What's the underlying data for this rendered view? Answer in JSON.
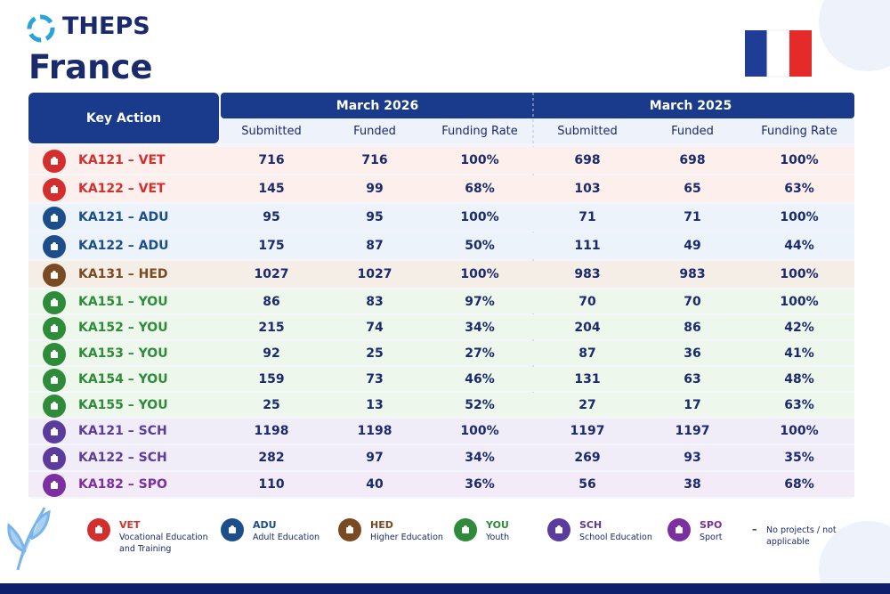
{
  "header": {
    "logo": "THEPS",
    "title": "France"
  },
  "table": {
    "key_header": "Key Action",
    "periods": [
      "March 2026",
      "March 2025"
    ],
    "subheaders": [
      "Submitted",
      "Funded",
      "Funding Rate"
    ],
    "rows": [
      [
        "KA121 – VET",
        "716",
        "716",
        "100%",
        "698",
        "698",
        "100%"
      ],
      [
        "KA122 – VET",
        "145",
        "99",
        "68%",
        "103",
        "65",
        "63%"
      ],
      [
        "KA121 – ADU",
        "95",
        "95",
        "100%",
        "71",
        "71",
        "100%"
      ],
      [
        "KA122 – ADU",
        "175",
        "87",
        "50%",
        "111",
        "49",
        "44%"
      ],
      [
        "KA131 – HED",
        "1027",
        "1027",
        "100%",
        "983",
        "983",
        "100%"
      ],
      [
        "KA151 – YOU",
        "86",
        "83",
        "97%",
        "70",
        "70",
        "100%"
      ],
      [
        "KA152 – YOU",
        "215",
        "74",
        "34%",
        "204",
        "86",
        "42%"
      ],
      [
        "KA153 – YOU",
        "92",
        "25",
        "27%",
        "87",
        "36",
        "41%"
      ],
      [
        "KA154 – YOU",
        "159",
        "73",
        "46%",
        "131",
        "63",
        "48%"
      ],
      [
        "KA155 – YOU",
        "25",
        "13",
        "52%",
        "27",
        "17",
        "63%"
      ],
      [
        "KA121 – SCH",
        "1198",
        "1198",
        "100%",
        "1197",
        "1197",
        "100%"
      ],
      [
        "KA122 – SCH",
        "282",
        "97",
        "34%",
        "269",
        "93",
        "35%"
      ],
      [
        "KA182 – SPO",
        "110",
        "40",
        "36%",
        "56",
        "38",
        "68%"
      ]
    ]
  },
  "legend": [
    {
      "key": "VET",
      "text": "Vocational Education and Training",
      "color": "#d32f2f",
      "bg": "#fcefec"
    },
    {
      "key": "ADU",
      "text": "Adult Education",
      "color": "#1b4e8a",
      "bg": "#edf3fb"
    },
    {
      "key": "HED",
      "text": "Higher Education",
      "color": "#7a4a22",
      "bg": "#f5eee7"
    },
    {
      "key": "YOU",
      "text": "Youth",
      "color": "#2e8b3a",
      "bg": "#eef7ec"
    },
    {
      "key": "SCH",
      "text": "School Education",
      "color": "#5b3b9b",
      "bg": "#f1edf8"
    },
    {
      "key": "SPO",
      "text": "Sport",
      "color": "#7b2fa0",
      "bg": "#f3ecf8"
    },
    {
      "key": "–",
      "text": "No projects / not applicable",
      "color": "#1a2a6c",
      "bg": "#ffffff"
    }
  ]
}
